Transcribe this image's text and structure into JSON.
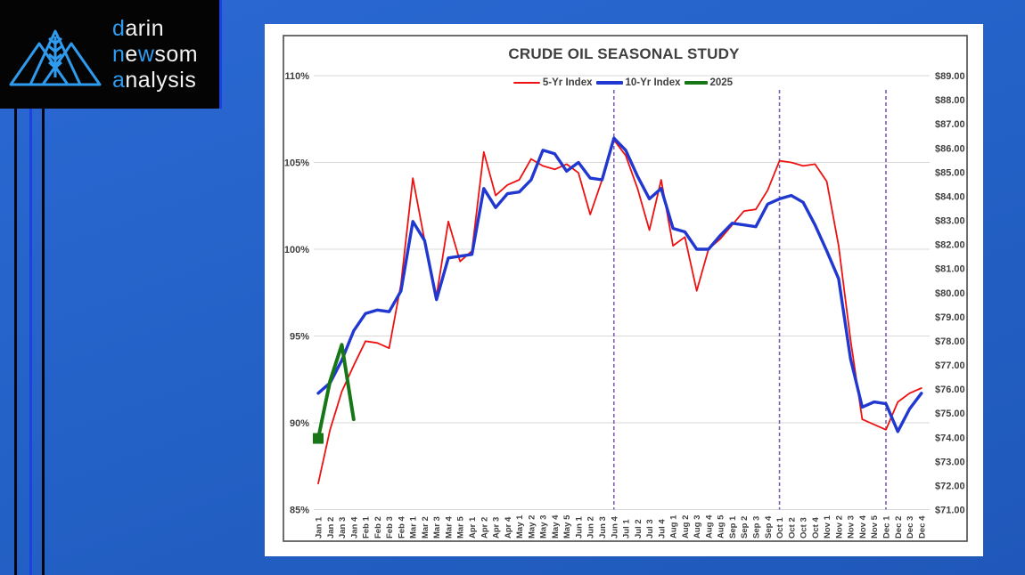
{
  "logo": {
    "brand_blue": "#2f9bef",
    "lines": [
      [
        {
          "t": "d",
          "blue": true
        },
        {
          "t": "arin",
          "blue": false
        }
      ],
      [
        {
          "t": "n",
          "blue": true
        },
        {
          "t": "e",
          "blue": false
        },
        {
          "t": "w",
          "blue": true
        },
        {
          "t": "som",
          "blue": false
        }
      ],
      [
        {
          "t": "a",
          "blue": true
        },
        {
          "t": "nalysis",
          "blue": false
        }
      ]
    ]
  },
  "chart_data": {
    "type": "line",
    "title": "CRUDE OIL SEASONAL STUDY",
    "legend_position": "top",
    "grid": true,
    "left_axis": {
      "min": 85,
      "max": 110,
      "step": 5,
      "format": "percent",
      "tick_labels": [
        "85%",
        "90%",
        "95%",
        "100%",
        "105%",
        "110%"
      ]
    },
    "right_axis": {
      "min": 71,
      "max": 89,
      "step": 1,
      "format": "dollar",
      "first_label": "$89.00",
      "last_label": "$71.00"
    },
    "categories": [
      "Jan 1",
      "Jan 2",
      "Jan 3",
      "Jan 4",
      "Feb 1",
      "Feb 2",
      "Feb 3",
      "Feb 4",
      "Mar 1",
      "Mar 2",
      "Mar 3",
      "Mar 4",
      "Mar 5",
      "Apr 1",
      "Apr 2",
      "Apr 3",
      "Apr 4",
      "May 1",
      "May 2",
      "May 3",
      "May 4",
      "May 5",
      "Jun 1",
      "Jun 2",
      "Jun 3",
      "Jun 4",
      "Jul 1",
      "Jul 2",
      "Jul 3",
      "Jul 4",
      "Aug 1",
      "Aug 2",
      "Aug 3",
      "Aug 4",
      "Aug 5",
      "Sep 1",
      "Sep 2",
      "Sep 3",
      "Sep 4",
      "Oct 1",
      "Oct 2",
      "Oct 3",
      "Oct 4",
      "Nov 1",
      "Nov 2",
      "Nov 3",
      "Nov 4",
      "Nov 5",
      "Dec 1",
      "Dec 2",
      "Dec 3",
      "Dec 4"
    ],
    "series": [
      {
        "name": "5-Yr Index",
        "color": "#ee1111",
        "width": 1.8,
        "marker_first": false,
        "values": [
          86.5,
          89.6,
          91.8,
          93.3,
          94.7,
          94.6,
          94.3,
          98.0,
          104.1,
          100.5,
          97.3,
          101.6,
          99.3,
          99.9,
          105.6,
          103.1,
          103.7,
          104.0,
          105.2,
          104.8,
          104.6,
          104.9,
          104.4,
          102.0,
          104.0,
          106.3,
          105.4,
          103.5,
          101.1,
          104.0,
          100.2,
          100.7,
          97.6,
          100.0,
          100.6,
          101.4,
          102.2,
          102.3,
          103.4,
          105.1,
          105.0,
          104.8,
          104.9,
          103.9,
          100.2,
          94.8,
          90.2,
          89.9,
          89.6,
          91.2,
          91.7,
          92.0
        ]
      },
      {
        "name": "10-Yr Index",
        "color": "#2038d0",
        "width": 3.4,
        "marker_first": false,
        "values": [
          91.7,
          92.3,
          93.6,
          95.3,
          96.3,
          96.5,
          96.4,
          97.6,
          101.6,
          100.5,
          97.1,
          99.5,
          99.6,
          99.7,
          103.5,
          102.4,
          103.2,
          103.3,
          104.0,
          105.7,
          105.5,
          104.5,
          105.0,
          104.1,
          104.0,
          106.4,
          105.7,
          104.2,
          102.9,
          103.5,
          101.2,
          101.0,
          100.0,
          100.0,
          100.8,
          101.5,
          101.4,
          101.3,
          102.6,
          102.9,
          103.1,
          102.7,
          101.4,
          99.9,
          98.3,
          93.7,
          90.9,
          91.2,
          91.1,
          89.5,
          90.8,
          91.7
        ]
      },
      {
        "name": "2025",
        "color": "#177717",
        "width": 4,
        "marker_first": true,
        "values": [
          89.1,
          92.4,
          94.5,
          90.2,
          null,
          null,
          null,
          null,
          null,
          null,
          null,
          null,
          null,
          null,
          null,
          null,
          null,
          null,
          null,
          null,
          null,
          null,
          null,
          null,
          null,
          null,
          null,
          null,
          null,
          null,
          null,
          null,
          null,
          null,
          null,
          null,
          null,
          null,
          null,
          null,
          null,
          null,
          null,
          null,
          null,
          null,
          null,
          null,
          null,
          null,
          null,
          null
        ]
      }
    ],
    "vlines": {
      "color": "#7d5fae",
      "style": "dashed",
      "at": [
        "Jun 4",
        "Oct 1",
        "Dec 1"
      ]
    },
    "colors": {
      "grid": "#d8d8d8",
      "frame": "#4a4a4a",
      "text": "#3f3f3f"
    }
  }
}
